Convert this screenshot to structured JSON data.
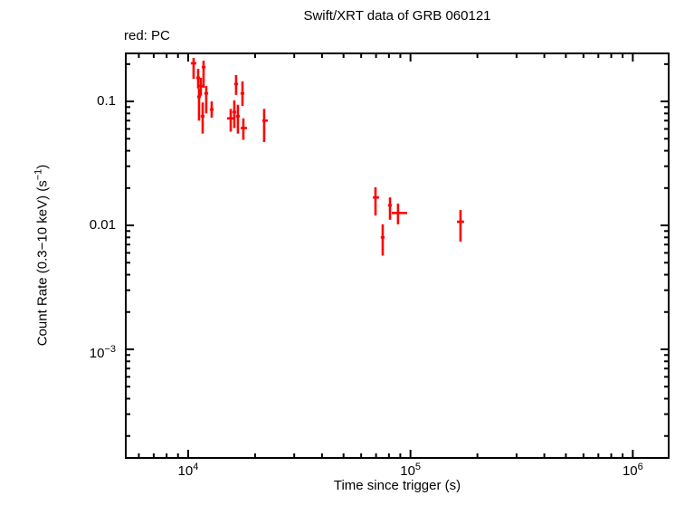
{
  "chart": {
    "title": "Swift/XRT data of GRB 060121",
    "legend": "red: PC",
    "xlabel": "Time since trigger (s)",
    "ylabel_segments": [
      {
        "t": "Count Rate (0.3−10 keV) (s"
      },
      {
        "t": "−1",
        "sup": true
      },
      {
        "t": ")"
      }
    ]
  },
  "chart_data": {
    "type": "scatter",
    "title": "Swift/XRT data of GRB 060121",
    "xlabel": "Time since trigger (s)",
    "ylabel": "Count Rate (0.3-10 keV) (s^-1)",
    "x_scale": "log",
    "y_scale": "log",
    "xlim": [
      5240,
      1450000
    ],
    "ylim": [
      0.000133,
      0.244
    ],
    "grid": false,
    "legend_position": "top-left",
    "legend_entries": [
      {
        "label": "PC",
        "color": "#ff0000"
      }
    ],
    "axis_color": "#000000",
    "x_major_ticks": [
      {
        "value": 10000,
        "base": "10",
        "exp": "4"
      },
      {
        "value": 100000,
        "base": "10",
        "exp": "5"
      },
      {
        "value": 1000000,
        "base": "10",
        "exp": "6"
      }
    ],
    "y_major_ticks": [
      {
        "value": 0.1,
        "label": "0.1"
      },
      {
        "value": 0.01,
        "label": "0.01"
      },
      {
        "value": 0.001,
        "base": "10",
        "exp": "−3"
      }
    ],
    "series": [
      {
        "name": "PC",
        "color": "#ff0000",
        "marker": "cross-with-errors",
        "points": [
          {
            "t": 10580,
            "t_lo": 10280,
            "t_hi": 10880,
            "rate": 0.203,
            "rate_lo": 0.152,
            "rate_hi": 0.224
          },
          {
            "t": 11090,
            "t_lo": 10870,
            "t_hi": 11310,
            "rate": 0.155,
            "rate_lo": 0.127,
            "rate_hi": 0.183
          },
          {
            "t": 11400,
            "t_lo": 11170,
            "t_hi": 11630,
            "rate": 0.133,
            "rate_lo": 0.111,
            "rate_hi": 0.155
          },
          {
            "t": 11730,
            "t_lo": 11500,
            "t_hi": 11960,
            "rate": 0.189,
            "rate_lo": 0.129,
            "rate_hi": 0.213
          },
          {
            "t": 11190,
            "t_lo": 10970,
            "t_hi": 11410,
            "rate": 0.109,
            "rate_lo": 0.07,
            "rate_hi": 0.127
          },
          {
            "t": 12060,
            "t_lo": 11820,
            "t_hi": 12300,
            "rate": 0.116,
            "rate_lo": 0.08,
            "rate_hi": 0.133
          },
          {
            "t": 11620,
            "t_lo": 11390,
            "t_hi": 11850,
            "rate": 0.076,
            "rate_lo": 0.055,
            "rate_hi": 0.098
          },
          {
            "t": 12760,
            "t_lo": 12510,
            "t_hi": 13010,
            "rate": 0.086,
            "rate_lo": 0.074,
            "rate_hi": 0.1
          },
          {
            "t": 16430,
            "t_lo": 16100,
            "t_hi": 16760,
            "rate": 0.138,
            "rate_lo": 0.113,
            "rate_hi": 0.163
          },
          {
            "t": 17550,
            "t_lo": 17200,
            "t_hi": 17900,
            "rate": 0.116,
            "rate_lo": 0.092,
            "rate_hi": 0.145
          },
          {
            "t": 16130,
            "t_lo": 15810,
            "t_hi": 16450,
            "rate": 0.082,
            "rate_lo": 0.061,
            "rate_hi": 0.102
          },
          {
            "t": 15540,
            "t_lo": 14970,
            "t_hi": 15980,
            "rate": 0.073,
            "rate_lo": 0.057,
            "rate_hi": 0.087
          },
          {
            "t": 16740,
            "t_lo": 16410,
            "t_hi": 17070,
            "rate": 0.076,
            "rate_lo": 0.055,
            "rate_hi": 0.094
          },
          {
            "t": 17710,
            "t_lo": 17220,
            "t_hi": 18390,
            "rate": 0.061,
            "rate_lo": 0.049,
            "rate_hi": 0.073
          },
          {
            "t": 21970,
            "t_lo": 21560,
            "t_hi": 22810,
            "rate": 0.07,
            "rate_lo": 0.047,
            "rate_hi": 0.087
          },
          {
            "t": 69600,
            "t_lo": 67700,
            "t_hi": 72200,
            "rate": 0.0168,
            "rate_lo": 0.012,
            "rate_hi": 0.0203
          },
          {
            "t": 80900,
            "t_lo": 79300,
            "t_hi": 82500,
            "rate": 0.0145,
            "rate_lo": 0.0111,
            "rate_hi": 0.0168
          },
          {
            "t": 87900,
            "t_lo": 82400,
            "t_hi": 96600,
            "rate": 0.0126,
            "rate_lo": 0.0102,
            "rate_hi": 0.015
          },
          {
            "t": 75000,
            "t_lo": 73500,
            "t_hi": 76500,
            "rate": 0.008,
            "rate_lo": 0.0057,
            "rate_hi": 0.0102
          },
          {
            "t": 167900,
            "t_lo": 161800,
            "t_hi": 174300,
            "rate": 0.0107,
            "rate_lo": 0.0074,
            "rate_hi": 0.0133
          }
        ]
      }
    ]
  }
}
